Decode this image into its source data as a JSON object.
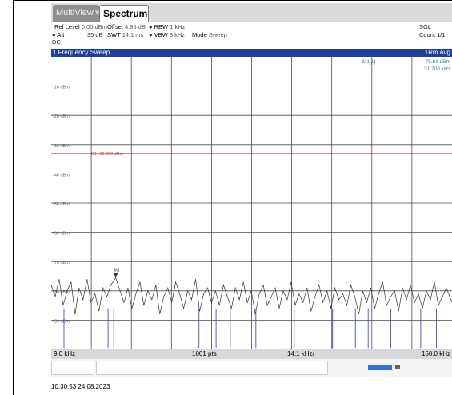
{
  "tabs": {
    "inactive": "MultiView",
    "active": "Spectrum"
  },
  "header": {
    "ref_level_label": "Ref Level",
    "ref_level_value": "0.00 dBm",
    "offset_label": "Offset",
    "offset_value": "4.85 dB",
    "rbw_label": "RBW",
    "rbw_value": "1 kHz",
    "att_label": "Att",
    "att_value": "35 dB",
    "swt_label": "SWT",
    "swt_value": "14.1 ms",
    "vbw_label": "VBW",
    "vbw_value": "3 kHz",
    "mode_label": "Mode",
    "mode_value": "Sweep",
    "coupling": "DC",
    "sgl": "SGL",
    "count": "Count 1/1"
  },
  "trace_title": "1 Frequency Sweep",
  "trace_mode": "1Rm Avg",
  "marker": {
    "label": "M1[1]",
    "level": "-75.61 dBm",
    "freq": "31.700 kHz",
    "tag": "M1"
  },
  "display_line": {
    "label": "D1 -33.000 dBm",
    "level_dbm": -33
  },
  "footer": {
    "start": "9.0 kHz",
    "points": "1001 pts",
    "step": "14.1 kHz/",
    "stop": "150.0 kHz"
  },
  "timestamp": "10:30:53 24.08.2023",
  "colors": {
    "tab_blue": "#1f3f99",
    "trace": "#333333",
    "display_line": "#b34a4a",
    "grid": "#4a4a4a",
    "trace2": "#2a3da0"
  },
  "chart_data": {
    "type": "line",
    "xlim_khz": [
      9.0,
      150.0
    ],
    "ylim_dbm": [
      -100,
      0
    ],
    "y_ticks": [
      {
        "label": "-10 dBm",
        "value": -10
      },
      {
        "label": "-20 dBm",
        "value": -20
      },
      {
        "label": "-30 dBm",
        "value": -30
      },
      {
        "label": "-40 dBm",
        "value": -40
      },
      {
        "label": "-50 dBm",
        "value": -50
      },
      {
        "label": "-60 dBm",
        "value": -60
      },
      {
        "label": "-70 dBm",
        "value": -70
      },
      {
        "label": "-80 dBm",
        "value": -80
      },
      {
        "label": "-90 dBm",
        "value": -90
      }
    ],
    "grid": true,
    "trace_freq_khz": [
      9.0,
      10.4,
      11.8,
      13.2,
      14.6,
      16.0,
      17.4,
      18.8,
      20.2,
      21.6,
      23.0,
      24.4,
      25.8,
      27.2,
      28.6,
      30.0,
      31.7,
      33.2,
      34.6,
      36.0,
      37.4,
      38.8,
      40.2,
      41.6,
      43.0,
      44.4,
      45.8,
      47.2,
      48.6,
      50.0,
      51.4,
      52.8,
      54.2,
      55.6,
      57.0,
      58.4,
      59.8,
      61.2,
      62.6,
      64.0,
      65.4,
      66.8,
      68.2,
      69.6,
      71.0,
      72.4,
      73.8,
      75.2,
      76.6,
      78.0,
      79.4,
      80.8,
      82.2,
      83.6,
      85.0,
      86.4,
      87.8,
      89.2,
      90.6,
      92.0,
      93.4,
      94.8,
      96.2,
      97.6,
      99.0,
      100.4,
      101.8,
      103.2,
      104.6,
      106.0,
      107.4,
      108.8,
      110.2,
      111.6,
      113.0,
      114.4,
      115.8,
      117.2,
      118.6,
      120.0,
      121.4,
      122.8,
      124.2,
      125.6,
      127.0,
      128.4,
      129.8,
      131.2,
      132.6,
      134.0,
      135.4,
      136.8,
      138.2,
      139.6,
      141.0,
      142.4,
      143.8,
      145.2,
      146.6,
      148.0,
      150.0
    ],
    "trace_level_dbm": [
      -78,
      -82,
      -76,
      -85,
      -80,
      -77,
      -88,
      -79,
      -83,
      -76,
      -84,
      -81,
      -87,
      -79,
      -82,
      -78,
      -75.6,
      -80,
      -84,
      -79,
      -86,
      -81,
      -77,
      -85,
      -80,
      -83,
      -78,
      -88,
      -82,
      -79,
      -84,
      -77,
      -81,
      -86,
      -80,
      -83,
      -76,
      -87,
      -81,
      -79,
      -84,
      -80,
      -85,
      -78,
      -82,
      -86,
      -79,
      -83,
      -77,
      -84,
      -80,
      -88,
      -81,
      -78,
      -85,
      -82,
      -79,
      -86,
      -80,
      -83,
      -77,
      -85,
      -81,
      -84,
      -79,
      -87,
      -82,
      -78,
      -84,
      -80,
      -86,
      -79,
      -83,
      -81,
      -85,
      -78,
      -82,
      -88,
      -80,
      -84,
      -79,
      -86,
      -81,
      -77,
      -85,
      -82,
      -80,
      -87,
      -79,
      -83,
      -78,
      -84,
      -81,
      -86,
      -80,
      -83,
      -77,
      -85,
      -82,
      -79,
      -84
    ],
    "trace2_spikes_khz": [
      13.5,
      29.0,
      31.0,
      55.0,
      61.0,
      63.5,
      67.0,
      72.0,
      81.0,
      94.5,
      108.0,
      116.0,
      120.5,
      128.5,
      139.0,
      144.5
    ]
  }
}
